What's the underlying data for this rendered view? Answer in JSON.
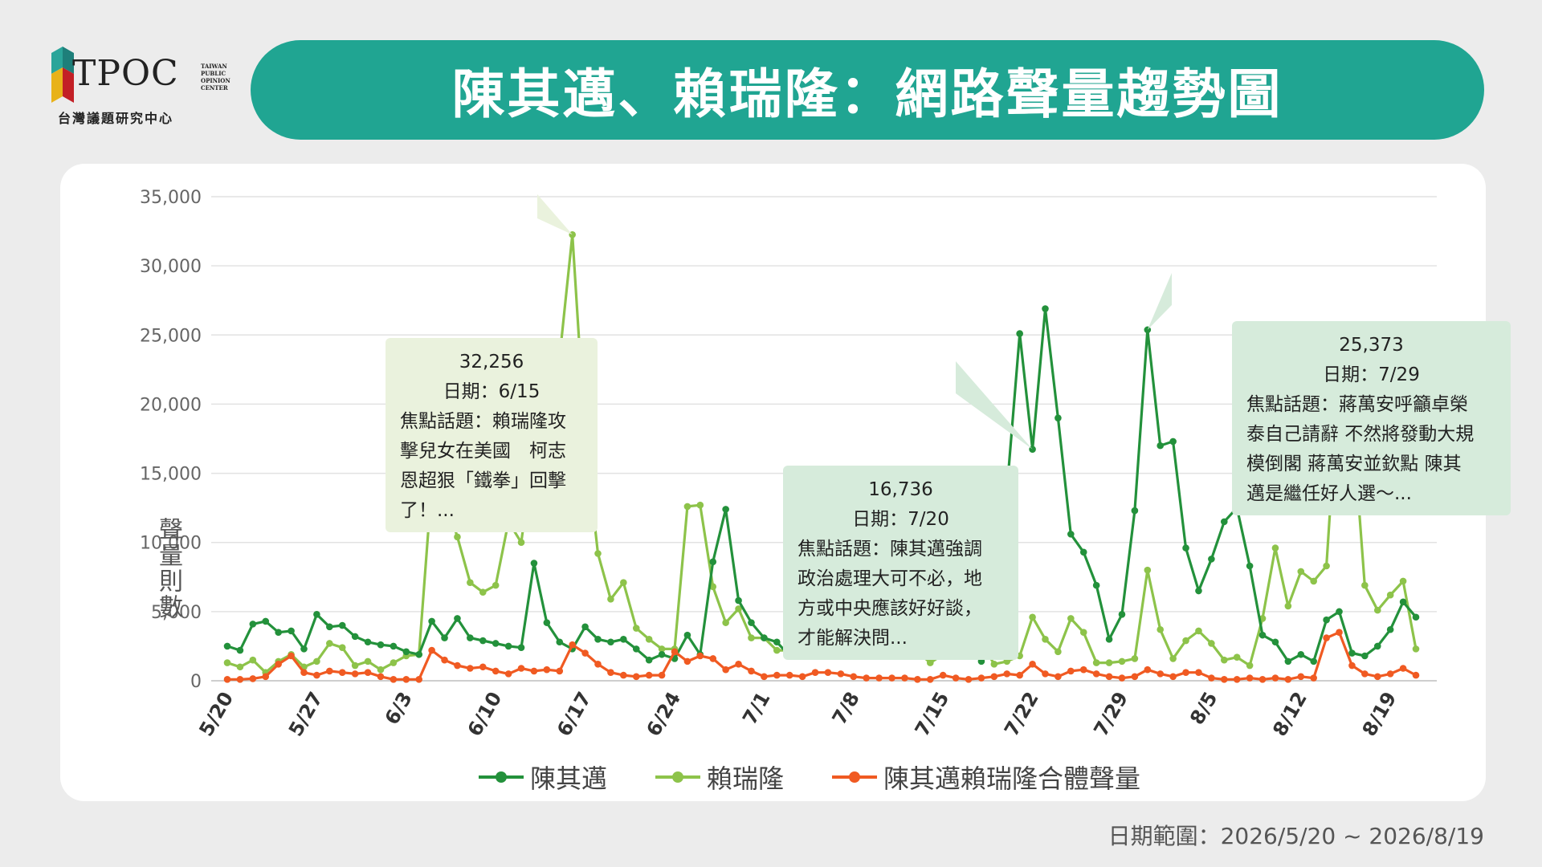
{
  "logo": {
    "name": "TPOC",
    "sub_lines": [
      "TAIWAN",
      "PUBLIC",
      "OPINION",
      "CENTER"
    ],
    "org": "台灣議題研究中心"
  },
  "title": "陳其邁、賴瑞隆：網路聲量趨勢圖",
  "date_range": "日期範圍：2026/5/20 ~ 2026/8/19",
  "colors": {
    "teal": "#20a592",
    "chen": "#23913b",
    "lai": "#8dc34a",
    "combined": "#f05a22"
  },
  "callouts": [
    {
      "value": "32,256",
      "date": "日期：6/15",
      "topic_lines": [
        "焦點話題：賴瑞隆攻",
        "擊兒女在美國　柯志",
        "恩超狠「鐵拳」回擊",
        "了！..."
      ]
    },
    {
      "value": "16,736",
      "date": "日期：7/20",
      "topic_lines": [
        "焦點話題：陳其邁強調",
        "政治處理大可不必，地",
        "方或中央應該好好談，",
        "才能解決問..."
      ]
    },
    {
      "value": "25,373",
      "date": "日期：7/29",
      "topic_lines": [
        "焦點話題：蔣萬安呼籲卓榮",
        "泰自己請辭 不然將發動大規",
        "模倒閣  蔣萬安並欽點  陳其",
        "邁是繼任好人選～..."
      ]
    }
  ],
  "chart_data": {
    "type": "line",
    "ylabel": "聲量則數",
    "ylim": [
      0,
      35000
    ],
    "yticks": [
      0,
      5000,
      10000,
      15000,
      20000,
      25000,
      30000,
      35000
    ],
    "ytick_labels": [
      "0",
      "5,000",
      "10,000",
      "15,000",
      "20,000",
      "25,000",
      "30,000",
      "35,000"
    ],
    "x_start": "2026-05-20",
    "x_end": "2026-08-19",
    "xtick_labels": [
      "5/20",
      "5/27",
      "6/3",
      "6/10",
      "6/17",
      "6/24",
      "7/1",
      "7/8",
      "7/15",
      "7/22",
      "7/29",
      "8/5",
      "8/12",
      "8/19"
    ],
    "grid": true,
    "legend_position": "bottom",
    "series": [
      {
        "name": "陳其邁",
        "color": "#23913b",
        "values": [
          2500,
          2200,
          4100,
          4300,
          3500,
          3600,
          2300,
          4800,
          3900,
          4000,
          3200,
          2800,
          2600,
          2500,
          2100,
          1900,
          4300,
          3100,
          4500,
          3100,
          2900,
          2700,
          2500,
          2400,
          8500,
          4200,
          2800,
          2300,
          3900,
          3000,
          2800,
          3000,
          2300,
          1500,
          1900,
          1600,
          3300,
          1900,
          8600,
          12400,
          5800,
          4200,
          3100,
          2800,
          1800,
          2600,
          3200,
          2700,
          1800,
          1800,
          6700,
          11200,
          5700,
          5100,
          3500,
          2400,
          6500,
          3900,
          3400,
          1400,
          3200,
          13800,
          25100,
          16736,
          26900,
          19000,
          10600,
          9300,
          6900,
          3000,
          4800,
          12300,
          25373,
          17000,
          17300,
          9600,
          6500,
          8800,
          11500,
          12500,
          8300,
          3300,
          2800,
          1400,
          1900,
          1400,
          4400,
          5000,
          2000,
          1800,
          2500,
          3700,
          5700,
          4600
        ]
      },
      {
        "name": "賴瑞隆",
        "color": "#8dc34a",
        "values": [
          1300,
          1000,
          1500,
          600,
          1400,
          1900,
          1000,
          1400,
          2700,
          2400,
          1100,
          1400,
          800,
          1300,
          1800,
          1900,
          14200,
          13300,
          10400,
          7100,
          6400,
          6900,
          11500,
          10000,
          16800,
          11700,
          23400,
          32256,
          17600,
          9200,
          5900,
          7100,
          3800,
          3000,
          2300,
          2300,
          12600,
          12700,
          6800,
          4200,
          5200,
          3100,
          3100,
          2200,
          2200,
          2100,
          3200,
          6800,
          11100,
          5700,
          6100,
          9700,
          7700,
          4300,
          2100,
          1300,
          1900,
          11600,
          4700,
          2800,
          1200,
          1400,
          1800,
          4600,
          3000,
          2100,
          4500,
          3500,
          1300,
          1300,
          1400,
          1600,
          8000,
          3700,
          1600,
          2900,
          3600,
          2700,
          1500,
          1700,
          1100,
          4500,
          9600,
          5400,
          7900,
          7200,
          8300,
          22500,
          19300,
          6900,
          5100,
          6200,
          7200,
          2300
        ]
      },
      {
        "name": "陳其邁賴瑞隆合體聲量",
        "color": "#f05a22",
        "values": [
          100,
          100,
          150,
          300,
          1200,
          1800,
          600,
          400,
          700,
          600,
          500,
          600,
          300,
          100,
          100,
          100,
          2200,
          1500,
          1100,
          900,
          1000,
          700,
          500,
          900,
          700,
          800,
          700,
          2600,
          2000,
          1200,
          600,
          400,
          300,
          400,
          400,
          2100,
          1400,
          1800,
          1600,
          800,
          1200,
          700,
          300,
          400,
          400,
          300,
          600,
          600,
          500,
          300,
          200,
          200,
          200,
          200,
          100,
          100,
          400,
          200,
          100,
          200,
          300,
          500,
          400,
          1200,
          500,
          300,
          700,
          800,
          500,
          300,
          200,
          300,
          800,
          500,
          300,
          600,
          600,
          200,
          100,
          100,
          200,
          100,
          200,
          100,
          300,
          200,
          3100,
          3500,
          1100,
          500,
          300,
          500,
          900,
          400
        ]
      }
    ]
  }
}
